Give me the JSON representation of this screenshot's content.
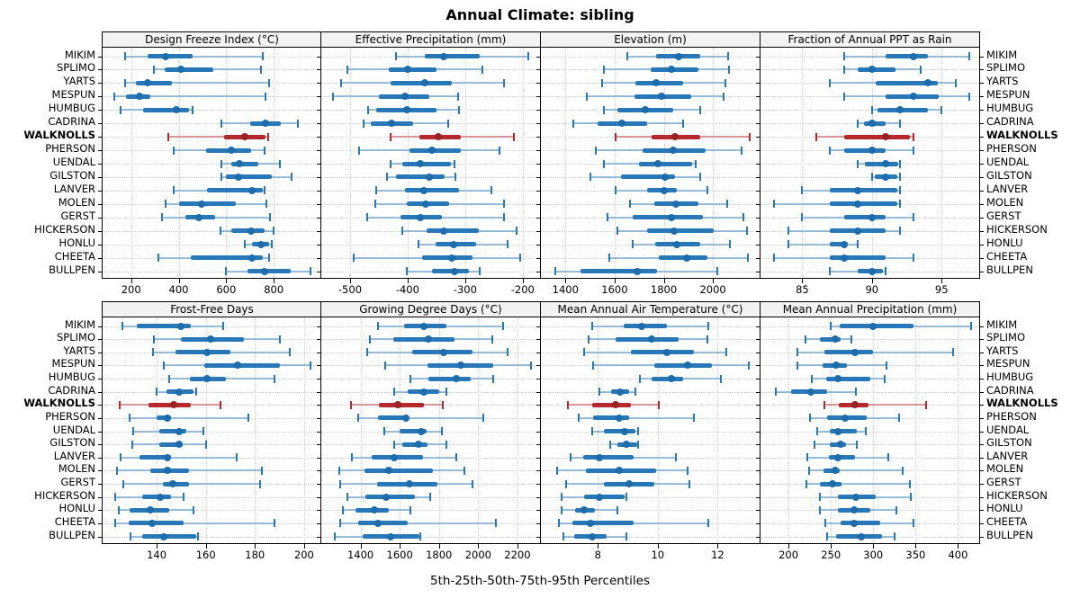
{
  "title": "Annual Climate: sibling",
  "caption": "5th-25th-50th-75th-95th Percentiles",
  "colors": {
    "normal": "#2878B9",
    "normal_dot": "#1D6CAD",
    "highlight": "#B5282B",
    "highlight_dot": "#9B2224",
    "grid": "#CFCFCF",
    "strip_bg": "#F2F2F2",
    "border": "#000000"
  },
  "chart_data": {
    "type": "dotplot",
    "percentiles": [
      5,
      25,
      50,
      75,
      95
    ],
    "legend_note": "thin line = 5th-95th, thick bar = 25th-75th, dot = median",
    "sites": [
      "MIKIM",
      "SPLIMO",
      "YARTS",
      "MESPUN",
      "HUMBUG",
      "CADRINA",
      "WALKNOLLS",
      "PHERSON",
      "UENDAL",
      "GILSTON",
      "LANVER",
      "MOLEN",
      "GERST",
      "HICKERSON",
      "HONLU",
      "CHEETA",
      "BULLPEN"
    ],
    "highlight_site": "WALKNOLLS",
    "panels": [
      {
        "title": "Design Freeze Index (°C)",
        "row": 0,
        "col": 0,
        "xlim": [
          80,
          1000
        ],
        "ticks": [
          200,
          400,
          600,
          800
        ],
        "series": [
          [
            175,
            270,
            345,
            460,
            755
          ],
          [
            295,
            340,
            410,
            545,
            745
          ],
          [
            175,
            220,
            270,
            370,
            780
          ],
          [
            130,
            180,
            235,
            280,
            765
          ],
          [
            155,
            250,
            390,
            445,
            460
          ],
          [
            580,
            700,
            765,
            830,
            900
          ],
          [
            355,
            590,
            680,
            765,
            775
          ],
          [
            380,
            515,
            620,
            705,
            760
          ],
          [
            580,
            620,
            655,
            735,
            825
          ],
          [
            580,
            600,
            650,
            790,
            875
          ],
          [
            380,
            520,
            710,
            755,
            760
          ],
          [
            345,
            400,
            495,
            640,
            770
          ],
          [
            330,
            430,
            485,
            555,
            785
          ],
          [
            575,
            620,
            705,
            760,
            800
          ],
          [
            680,
            710,
            745,
            780,
            790
          ],
          [
            315,
            450,
            710,
            755,
            780
          ],
          [
            600,
            690,
            760,
            870,
            955
          ]
        ]
      },
      {
        "title": "Effective Precipitation (mm)",
        "row": 0,
        "col": 1,
        "xlim": [
          -550,
          -170
        ],
        "ticks": [
          -500,
          -400,
          -300,
          -200
        ],
        "series": [
          [
            -420,
            -370,
            -337,
            -275,
            -190
          ],
          [
            -505,
            -433,
            -400,
            -350,
            -270
          ],
          [
            -515,
            -430,
            -370,
            -323,
            -233
          ],
          [
            -530,
            -450,
            -405,
            -363,
            -312
          ],
          [
            -468,
            -455,
            -402,
            -350,
            -310
          ],
          [
            -476,
            -464,
            -428,
            -391,
            -329
          ],
          [
            -429,
            -379,
            -347,
            -308,
            -216
          ],
          [
            -485,
            -396,
            -358,
            -308,
            -240
          ],
          [
            -429,
            -410,
            -378,
            -325,
            -318
          ],
          [
            -436,
            -420,
            -363,
            -336,
            -317
          ],
          [
            -454,
            -404,
            -372,
            -310,
            -254
          ],
          [
            -456,
            -402,
            -368,
            -328,
            -232
          ],
          [
            -471,
            -413,
            -378,
            -341,
            -233
          ],
          [
            -410,
            -367,
            -337,
            -276,
            -211
          ],
          [
            -381,
            -351,
            -320,
            -281,
            -226
          ],
          [
            -494,
            -375,
            -323,
            -288,
            -204
          ],
          [
            -401,
            -358,
            -318,
            -294,
            -275
          ]
        ]
      },
      {
        "title": "Elevation (m)",
        "row": 0,
        "col": 2,
        "xlim": [
          1300,
          2190
        ],
        "ticks": [
          1400,
          1600,
          1800,
          2000
        ],
        "series": [
          [
            1650,
            1770,
            1860,
            1950,
            2060
          ],
          [
            1555,
            1745,
            1830,
            1940,
            2065
          ],
          [
            1550,
            1685,
            1770,
            1880,
            2050
          ],
          [
            1487,
            1680,
            1790,
            1910,
            2045
          ],
          [
            1557,
            1612,
            1725,
            1840,
            1950
          ],
          [
            1432,
            1532,
            1630,
            1734,
            1880
          ],
          [
            1605,
            1750,
            1845,
            1950,
            2150
          ],
          [
            1525,
            1715,
            1840,
            1970,
            2115
          ],
          [
            1557,
            1700,
            1777,
            1917,
            1930
          ],
          [
            1500,
            1627,
            1805,
            1845,
            1950
          ],
          [
            1603,
            1731,
            1801,
            1854,
            1978
          ],
          [
            1664,
            1762,
            1850,
            1940,
            2058
          ],
          [
            1570,
            1673,
            1832,
            1960,
            2125
          ],
          [
            1610,
            1731,
            1841,
            2003,
            2137
          ],
          [
            1673,
            1764,
            1854,
            1948,
            2070
          ],
          [
            1580,
            1780,
            1893,
            1978,
            2144
          ],
          [
            1358,
            1462,
            1691,
            1774,
            2019
          ]
        ]
      },
      {
        "title": "Fraction of Annual PPT as Rain",
        "row": 0,
        "col": 3,
        "xlim": [
          82,
          97.7
        ],
        "ticks": [
          85,
          90,
          95
        ],
        "series": [
          [
            88,
            91,
            93,
            94,
            97
          ],
          [
            88,
            89,
            90,
            91.7,
            93.5
          ],
          [
            87,
            90.3,
            94,
            94.7,
            96
          ],
          [
            88,
            91,
            93,
            94.8,
            97
          ],
          [
            90,
            90.4,
            92,
            94,
            95
          ],
          [
            89,
            89.4,
            90,
            91,
            92
          ],
          [
            86,
            88,
            91,
            92.7,
            93
          ],
          [
            87,
            88,
            90,
            91,
            93
          ],
          [
            89,
            89.5,
            91,
            91.9,
            92
          ],
          [
            90,
            90.2,
            91,
            91.8,
            92
          ],
          [
            85,
            87,
            89,
            91.8,
            92
          ],
          [
            83,
            87,
            89,
            91.8,
            92
          ],
          [
            85,
            88,
            90,
            91,
            93
          ],
          [
            84,
            87,
            89,
            91,
            92
          ],
          [
            84,
            87,
            88,
            88.3,
            89
          ],
          [
            83,
            87,
            88,
            91,
            93
          ],
          [
            87,
            89,
            90,
            90.8,
            91
          ]
        ]
      },
      {
        "title": "Frost-Free Days",
        "row": 1,
        "col": 0,
        "xlim": [
          118,
          207
        ],
        "ticks": [
          140,
          160,
          180,
          200
        ],
        "series": [
          [
            126,
            132,
            150,
            154,
            167
          ],
          [
            139,
            150,
            162,
            175.5,
            190
          ],
          [
            138.5,
            147.5,
            160.5,
            170,
            194
          ],
          [
            143,
            159.5,
            173,
            190,
            202.5
          ],
          [
            145,
            153.5,
            160.5,
            168,
            188
          ],
          [
            140,
            144,
            149,
            155,
            156
          ],
          [
            125,
            136.5,
            147,
            154,
            166
          ],
          [
            129,
            140,
            144.5,
            146,
            177.5
          ],
          [
            130.5,
            141,
            149,
            152,
            159
          ],
          [
            130,
            141,
            149,
            150.5,
            160
          ],
          [
            125.5,
            133,
            144.5,
            146,
            172.5
          ],
          [
            124,
            137.5,
            144.5,
            153,
            183
          ],
          [
            126.5,
            142.5,
            146.5,
            153,
            182
          ],
          [
            123,
            134,
            141.5,
            146,
            151
          ],
          [
            124.5,
            129,
            137.5,
            145,
            155
          ],
          [
            123,
            128.5,
            138,
            151,
            188
          ],
          [
            129.5,
            134,
            143,
            156,
            157
          ]
        ]
      },
      {
        "title": "Growing Degree Days (°C)",
        "row": 1,
        "col": 1,
        "xlim": [
          1200,
          2315
        ],
        "ticks": [
          1400,
          1600,
          1800,
          2000,
          2200
        ],
        "series": [
          [
            1490,
            1620,
            1725,
            1840,
            2125
          ],
          [
            1450,
            1565,
            1745,
            1880,
            2070
          ],
          [
            1435,
            1665,
            1825,
            1970,
            2150
          ],
          [
            1525,
            1740,
            1910,
            2075,
            2270
          ],
          [
            1655,
            1745,
            1890,
            1960,
            2075
          ],
          [
            1570,
            1640,
            1725,
            1800,
            1840
          ],
          [
            1350,
            1495,
            1590,
            1725,
            1820
          ],
          [
            1390,
            1490,
            1630,
            1640,
            2025
          ],
          [
            1523,
            1600,
            1710,
            1735,
            1815
          ],
          [
            1570,
            1615,
            1695,
            1740,
            1840
          ],
          [
            1357,
            1455,
            1570,
            1720,
            1890
          ],
          [
            1292,
            1420,
            1545,
            1770,
            1930
          ],
          [
            1295,
            1485,
            1650,
            1790,
            1970
          ],
          [
            1334,
            1423,
            1530,
            1677,
            1754
          ],
          [
            1310,
            1375,
            1470,
            1545,
            1655
          ],
          [
            1295,
            1390,
            1490,
            1640,
            2090
          ],
          [
            1270,
            1410,
            1555,
            1700,
            1705
          ]
        ]
      },
      {
        "title": "Mean Annual Air Temperature (°C)",
        "row": 1,
        "col": 2,
        "xlim": [
          6.1,
          13.4
        ],
        "ticks": [
          8,
          10,
          12
        ],
        "series": [
          [
            7.8,
            8.85,
            9.45,
            10.3,
            11.7
          ],
          [
            7.7,
            8.6,
            9.8,
            10.7,
            11.65
          ],
          [
            7.55,
            9.1,
            10.3,
            11.2,
            12.3
          ],
          [
            7.85,
            9.9,
            11.0,
            11.8,
            13.05
          ],
          [
            9.4,
            9.8,
            10.45,
            10.85,
            12.1
          ],
          [
            8.05,
            8.45,
            8.75,
            9.05,
            9.25
          ],
          [
            7.0,
            7.8,
            8.6,
            9.1,
            10.05
          ],
          [
            7.35,
            7.85,
            8.7,
            9.05,
            11.2
          ],
          [
            7.8,
            8.2,
            8.9,
            9.25,
            9.35
          ],
          [
            8.4,
            8.65,
            8.95,
            9.3,
            9.35
          ],
          [
            7.1,
            7.5,
            8.05,
            9.2,
            10.6
          ],
          [
            6.65,
            7.6,
            8.7,
            9.95,
            11.0
          ],
          [
            6.95,
            8.2,
            9.05,
            9.9,
            11.05
          ],
          [
            6.8,
            7.55,
            8.05,
            8.9,
            8.95
          ],
          [
            6.8,
            7.25,
            7.55,
            7.9,
            8.65
          ],
          [
            6.7,
            7.15,
            7.75,
            9.2,
            11.7
          ],
          [
            6.85,
            7.2,
            7.8,
            8.3,
            8.95
          ]
        ]
      },
      {
        "title": "Mean Annual Precipitation (mm)",
        "row": 1,
        "col": 3,
        "xlim": [
          167,
          425
        ],
        "ticks": [
          200,
          250,
          300,
          350,
          400
        ],
        "series": [
          [
            250,
            260,
            300,
            348,
            415
          ],
          [
            220,
            237,
            255,
            261,
            274
          ],
          [
            210,
            242,
            278,
            300,
            394
          ],
          [
            210,
            240,
            256,
            269,
            316
          ],
          [
            228,
            245,
            258,
            297,
            313
          ],
          [
            185,
            203,
            226,
            246,
            280
          ],
          [
            242,
            259,
            279,
            294,
            362
          ],
          [
            225,
            246,
            267,
            292,
            330
          ],
          [
            234,
            249,
            258,
            281,
            291
          ],
          [
            231,
            249,
            261,
            268,
            281
          ],
          [
            222,
            248,
            258,
            278,
            318
          ],
          [
            224,
            241,
            255,
            260,
            335
          ],
          [
            221,
            237,
            252,
            263,
            343
          ],
          [
            237,
            258,
            280,
            303,
            344
          ],
          [
            237,
            258,
            277,
            297,
            327
          ],
          [
            243,
            262,
            277,
            308,
            348
          ],
          [
            246,
            256,
            286,
            310,
            325
          ]
        ]
      }
    ]
  }
}
